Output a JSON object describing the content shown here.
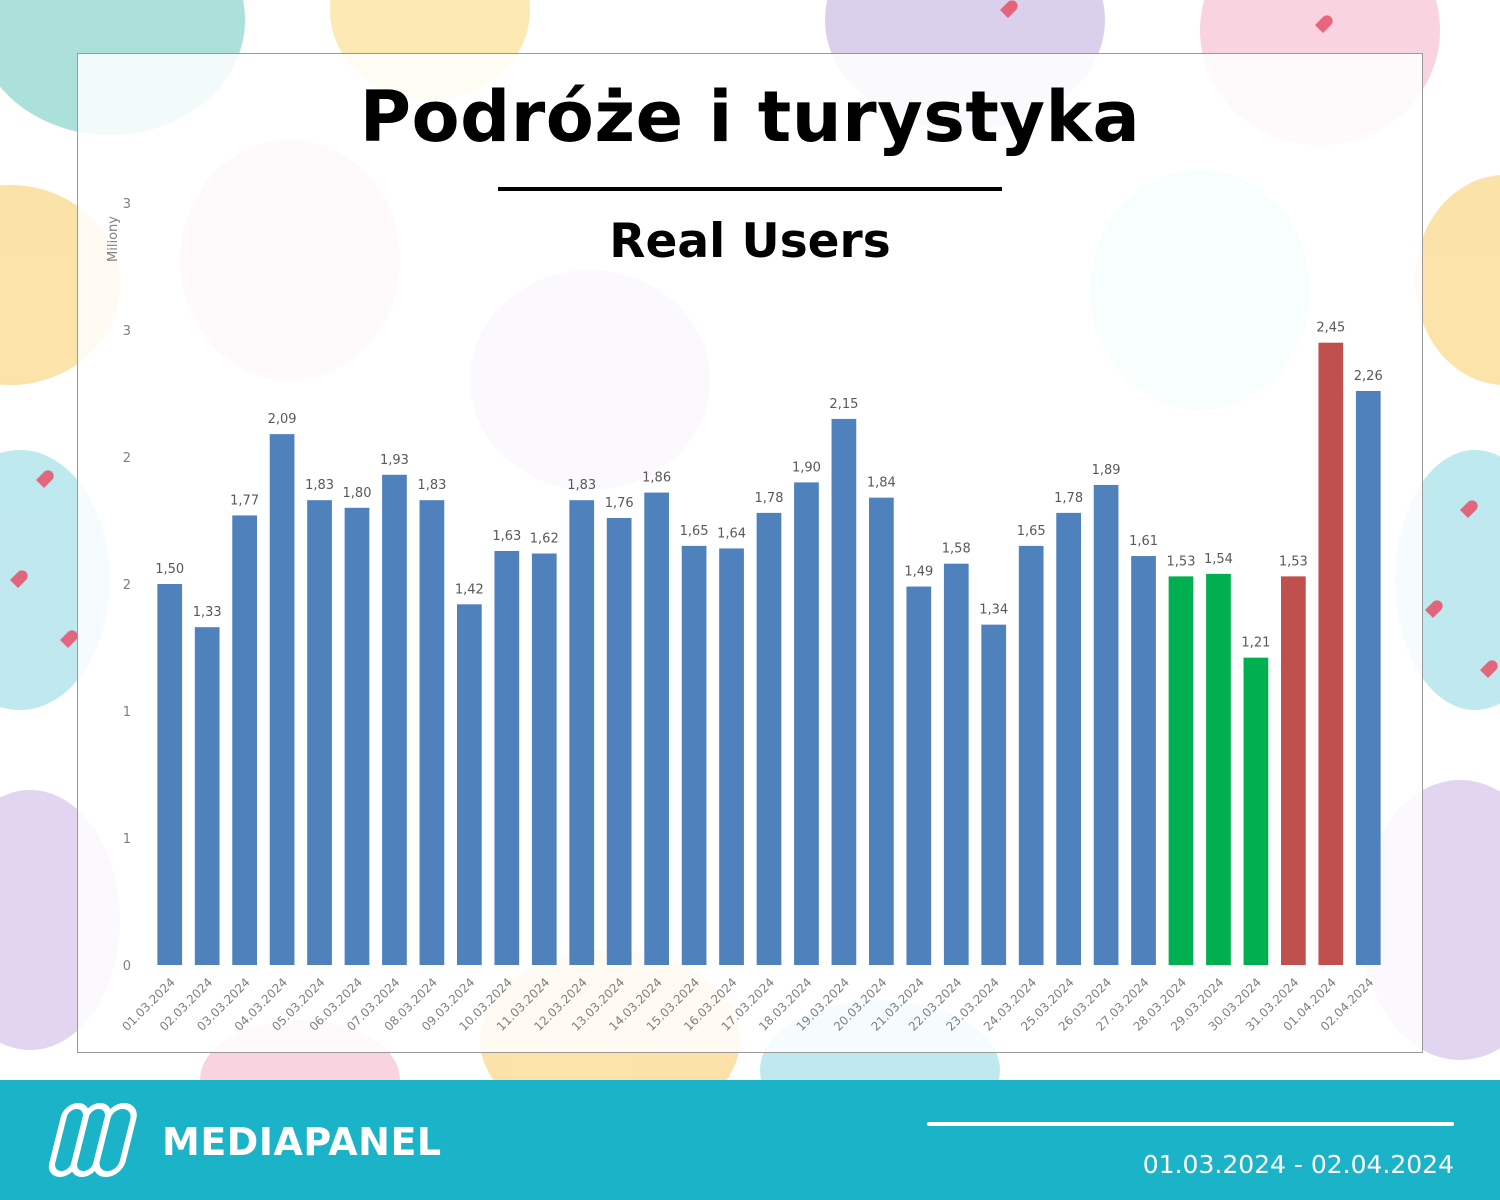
{
  "header": {
    "title": "Podróże i turystyka",
    "subtitle": "Real Users"
  },
  "chart_data": {
    "type": "bar",
    "ylabel": "Miliony",
    "ylim": [
      0,
      3
    ],
    "y_tick_labels": [
      "0",
      "1",
      "1",
      "2",
      "2",
      "3",
      "3"
    ],
    "y_tick_values": [
      0,
      0.5,
      1.0,
      1.5,
      2.0,
      2.5,
      3.0
    ],
    "grid": false,
    "colors": {
      "default": "#4f81bd",
      "green": "#00b050",
      "red": "#c0504d"
    },
    "categories": [
      "01.03.2024",
      "02.03.2024",
      "03.03.2024",
      "04.03.2024",
      "05.03.2024",
      "06.03.2024",
      "07.03.2024",
      "08.03.2024",
      "09.03.2024",
      "10.03.2024",
      "11.03.2024",
      "12.03.2024",
      "13.03.2024",
      "14.03.2024",
      "15.03.2024",
      "16.03.2024",
      "17.03.2024",
      "18.03.2024",
      "19.03.2024",
      "20.03.2024",
      "21.03.2024",
      "22.03.2024",
      "23.03.2024",
      "24.03.2024",
      "25.03.2024",
      "26.03.2024",
      "27.03.2024",
      "28.03.2024",
      "29.03.2024",
      "30.03.2024",
      "31.03.2024",
      "01.04.2024",
      "02.04.2024"
    ],
    "values": [
      1.5,
      1.33,
      1.77,
      2.09,
      1.83,
      1.8,
      1.93,
      1.83,
      1.42,
      1.63,
      1.62,
      1.83,
      1.76,
      1.86,
      1.65,
      1.64,
      1.78,
      1.9,
      2.15,
      1.84,
      1.49,
      1.58,
      1.34,
      1.65,
      1.78,
      1.89,
      1.61,
      1.53,
      1.54,
      1.21,
      1.53,
      2.45,
      2.26
    ],
    "value_labels": [
      "1,50",
      "1,33",
      "1,77",
      "2,09",
      "1,83",
      "1,80",
      "1,93",
      "1,83",
      "1,42",
      "1,63",
      "1,62",
      "1,83",
      "1,76",
      "1,86",
      "1,65",
      "1,64",
      "1,78",
      "1,90",
      "2,15",
      "1,84",
      "1,49",
      "1,58",
      "1,34",
      "1,65",
      "1,78",
      "1,89",
      "1,61",
      "1,53",
      "1,54",
      "1,21",
      "1,53",
      "2,45",
      "2,26"
    ],
    "bar_colors": [
      "default",
      "default",
      "default",
      "default",
      "default",
      "default",
      "default",
      "default",
      "default",
      "default",
      "default",
      "default",
      "default",
      "default",
      "default",
      "default",
      "default",
      "default",
      "default",
      "default",
      "default",
      "default",
      "default",
      "default",
      "default",
      "default",
      "default",
      "green",
      "green",
      "green",
      "red",
      "red",
      "default"
    ]
  },
  "footer": {
    "brand": "MEDIAPANEL",
    "date_range": "01.03.2024 - 02.04.2024",
    "background_color": "#1bb3c8"
  }
}
